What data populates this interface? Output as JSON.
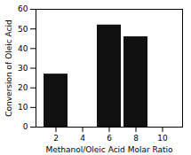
{
  "chart_data": {
    "type": "bar",
    "x": [
      2,
      6,
      8
    ],
    "values": [
      27,
      52,
      46
    ],
    "color": "#111111",
    "xlabel": "Methanol/Oleic Acid Molar Ratio",
    "ylabel": "Conversion of Oleic Acid",
    "xlim": [
      0.5,
      11.5
    ],
    "xticks": [
      2,
      4,
      6,
      8,
      10
    ],
    "ylim": [
      0,
      60
    ],
    "yticks": [
      0,
      10,
      20,
      30,
      40,
      50,
      60
    ],
    "grid": false
  }
}
